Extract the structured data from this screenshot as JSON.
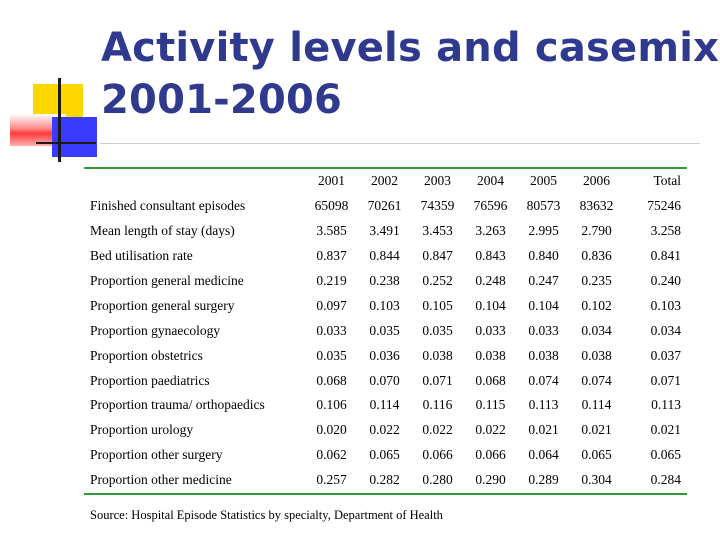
{
  "slide": {
    "title_line1": "Activity levels and casemix",
    "title_line2": "2001-2006",
    "source": "Source: Hospital Episode Statistics by specialty, Department of Health"
  },
  "table": {
    "columns": [
      "2001",
      "2002",
      "2003",
      "2004",
      "2005",
      "2006",
      "Total"
    ],
    "rows": [
      {
        "label": "Finished consultant episodes",
        "values": [
          "65098",
          "70261",
          "74359",
          "76596",
          "80573",
          "83632",
          "75246"
        ]
      },
      {
        "label": "Mean length of stay (days)",
        "values": [
          "3.585",
          "3.491",
          "3.453",
          "3.263",
          "2.995",
          "2.790",
          "3.258"
        ]
      },
      {
        "label": "Bed utilisation rate",
        "values": [
          "0.837",
          "0.844",
          "0.847",
          "0.843",
          "0.840",
          "0.836",
          "0.841"
        ]
      },
      {
        "label": "Proportion general medicine",
        "values": [
          "0.219",
          "0.238",
          "0.252",
          "0.248",
          "0.247",
          "0.235",
          "0.240"
        ]
      },
      {
        "label": "Proportion general surgery",
        "values": [
          "0.097",
          "0.103",
          "0.105",
          "0.104",
          "0.104",
          "0.102",
          "0.103"
        ]
      },
      {
        "label": "Proportion gynaecology",
        "values": [
          "0.033",
          "0.035",
          "0.035",
          "0.033",
          "0.033",
          "0.034",
          "0.034"
        ]
      },
      {
        "label": "Proportion obstetrics",
        "values": [
          "0.035",
          "0.036",
          "0.038",
          "0.038",
          "0.038",
          "0.038",
          "0.037"
        ]
      },
      {
        "label": "Proportion paediatrics",
        "values": [
          "0.068",
          "0.070",
          "0.071",
          "0.068",
          "0.074",
          "0.074",
          "0.071"
        ]
      },
      {
        "label": "Proportion trauma/ orthopaedics",
        "values": [
          "0.106",
          "0.114",
          "0.116",
          "0.115",
          "0.113",
          "0.114",
          "0.113"
        ]
      },
      {
        "label": "Proportion urology",
        "values": [
          "0.020",
          "0.022",
          "0.022",
          "0.022",
          "0.021",
          "0.021",
          "0.021"
        ]
      },
      {
        "label": "Proportion other surgery",
        "values": [
          "0.062",
          "0.065",
          "0.066",
          "0.066",
          "0.064",
          "0.065",
          "0.065"
        ]
      },
      {
        "label": "Proportion other medicine",
        "values": [
          "0.257",
          "0.282",
          "0.280",
          "0.290",
          "0.289",
          "0.304",
          "0.284"
        ]
      }
    ]
  },
  "colors": {
    "title": "#2f3a8f",
    "table_rule": "#2e9a3a",
    "deco_yellow": "#ffd700",
    "deco_red": "#ff3a3a",
    "deco_blue": "#3b3bff"
  }
}
